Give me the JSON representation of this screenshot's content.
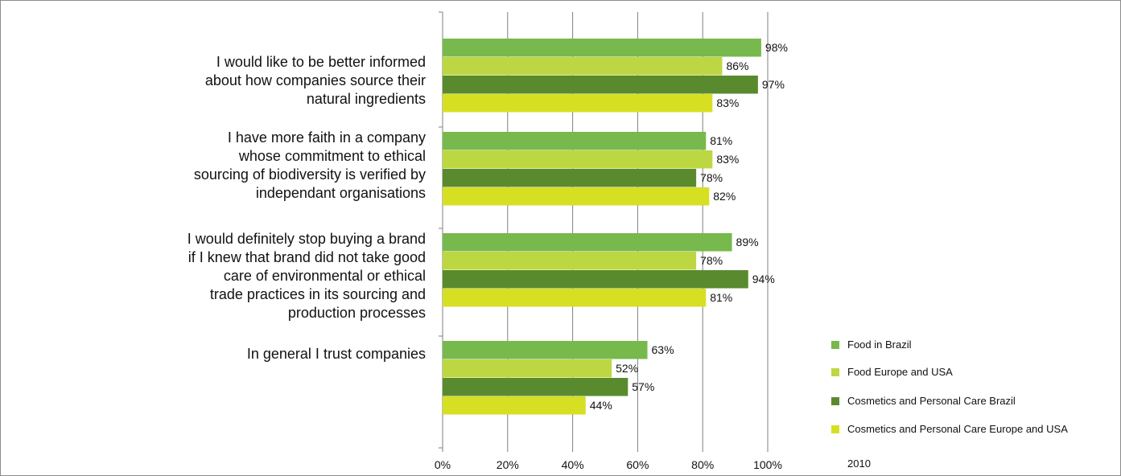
{
  "chart_data": {
    "type": "bar",
    "orientation": "horizontal",
    "categories": [
      "I would like to be better informed\nabout how companies source their\nnatural ingredients",
      "I have more faith in a company\nwhose commitment to ethical\nsourcing of biodiversity is verified by\nindependant organisations",
      "I would definitely stop buying a brand\nif I knew that brand did not take good\ncare of environmental or ethical\ntrade practices in its sourcing and\nproduction processes",
      "In general I trust companies"
    ],
    "series": [
      {
        "name": "Food in Brazil",
        "color": "#77b94c",
        "values": [
          98,
          81,
          89,
          63
        ],
        "labels": [
          "98%",
          "81%",
          "89%",
          "63%"
        ]
      },
      {
        "name": "Food Europe and USA",
        "color": "#bdd743",
        "values": [
          86,
          83,
          78,
          52
        ],
        "labels": [
          "86%",
          "83%",
          "78%",
          "52%"
        ]
      },
      {
        "name": "Cosmetics and Personal Care Brazil",
        "color": "#5a8a2e",
        "values": [
          97,
          78,
          94,
          57
        ],
        "labels": [
          "97%",
          "78%",
          "94%",
          "57%"
        ]
      },
      {
        "name": "Cosmetics and Personal Care Europe and USA",
        "color": "#d7df23",
        "values": [
          83,
          82,
          81,
          44
        ],
        "labels": [
          "83%",
          "82%",
          "81%",
          "44%"
        ]
      }
    ],
    "xlim": [
      0,
      100
    ],
    "xticks": [
      0,
      20,
      40,
      60,
      80,
      100
    ],
    "xtick_labels": [
      "0%",
      "20%",
      "40%",
      "60%",
      "80%",
      "100%"
    ],
    "grid": true,
    "legend_position": "right",
    "note": "2010"
  }
}
